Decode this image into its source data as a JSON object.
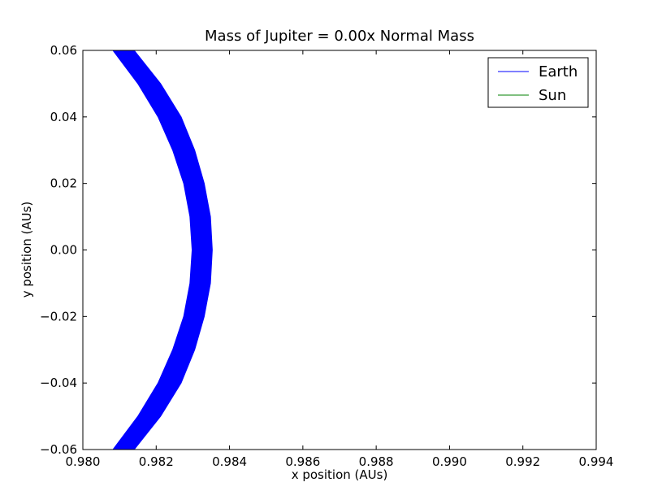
{
  "chart_data": {
    "type": "line",
    "title": "Mass of Jupiter = 0.00x Normal Mass",
    "xlabel": "x position (AUs)",
    "ylabel": "y position (AUs)",
    "xlim": [
      0.98,
      0.994
    ],
    "ylim": [
      -0.06,
      0.06
    ],
    "x_ticks": [
      0.98,
      0.982,
      0.984,
      0.986,
      0.988,
      0.99,
      0.992,
      0.994
    ],
    "x_tick_labels": [
      "0.980",
      "0.982",
      "0.984",
      "0.986",
      "0.988",
      "0.990",
      "0.992",
      "0.994"
    ],
    "y_ticks": [
      0.06,
      0.04,
      0.02,
      0.0,
      -0.02,
      -0.04,
      -0.06
    ],
    "y_tick_labels": [
      "0.06",
      "0.04",
      "0.02",
      "0.00",
      "−0.02",
      "−0.04",
      "−0.06"
    ],
    "grid": false,
    "legend_position": "top-right",
    "series": [
      {
        "name": "Earth",
        "color": "#0000ff",
        "band": {
          "y": [
            -0.06,
            -0.05,
            -0.04,
            -0.03,
            -0.02,
            -0.01,
            0.0,
            0.01,
            0.02,
            0.03,
            0.04,
            0.05,
            0.06
          ],
          "x_inner": [
            0.98082,
            0.9815,
            0.98205,
            0.98245,
            0.98275,
            0.98292,
            0.98298,
            0.98292,
            0.98275,
            0.98245,
            0.98205,
            0.9815,
            0.98082
          ],
          "x_outer": [
            0.9814,
            0.98212,
            0.98268,
            0.98305,
            0.98331,
            0.98348,
            0.98353,
            0.98348,
            0.98331,
            0.98305,
            0.98268,
            0.98212,
            0.9814
          ]
        }
      },
      {
        "name": "Sun",
        "color": "#008000",
        "points": []
      }
    ]
  }
}
